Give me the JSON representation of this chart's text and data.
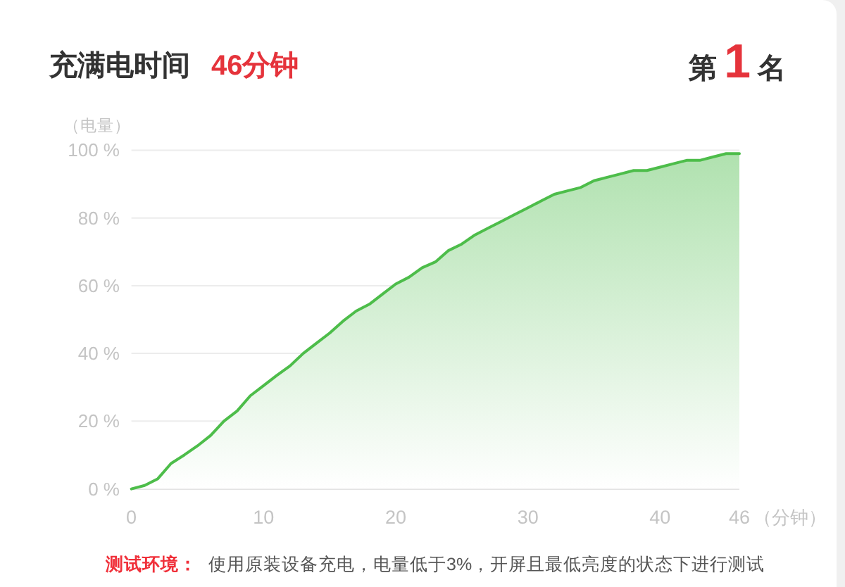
{
  "chart_data": {
    "type": "area",
    "title": "充满电时间",
    "subtitle": "46分钟",
    "annotations": [
      "第1名",
      "测试环境：",
      "使用原装设备充电，电量低于3%，开屏且最低亮度的状态下进行测试"
    ],
    "xlabel": "（分钟）",
    "ylabel": "（电量）",
    "x": [
      0,
      1,
      2,
      3,
      4,
      5,
      6,
      7,
      8,
      9,
      10,
      11,
      12,
      13,
      14,
      15,
      16,
      17,
      18,
      19,
      20,
      21,
      22,
      23,
      24,
      25,
      26,
      27,
      28,
      29,
      30,
      31,
      32,
      33,
      34,
      35,
      36,
      37,
      38,
      39,
      40,
      41,
      42,
      43,
      44,
      45,
      46
    ],
    "values": [
      0,
      1,
      3,
      7.5,
      10,
      12.7,
      15.8,
      20,
      23,
      27.5,
      30.5,
      33.5,
      36.3,
      40,
      43,
      46,
      49.5,
      52.5,
      54.5,
      57.5,
      60.5,
      62.5,
      65.3,
      67,
      70.4,
      72.3,
      75,
      77,
      79,
      81,
      83,
      85,
      87,
      88,
      89,
      91,
      92,
      93,
      94,
      94,
      95,
      96,
      97,
      97,
      98,
      99,
      99
    ],
    "color": "#4dbd4a",
    "xlim": [
      0,
      46
    ],
    "xticks": [
      0,
      10,
      20,
      30,
      40,
      46
    ],
    "ylim": [
      0,
      100
    ],
    "yticks": [
      {
        "value": 0,
        "label": "0 %"
      },
      {
        "value": 20,
        "label": "20 %"
      },
      {
        "value": 40,
        "label": "40 %"
      },
      {
        "value": 60,
        "label": "60 %"
      },
      {
        "value": 80,
        "label": "80 %"
      },
      {
        "value": 100,
        "label": "100 %"
      }
    ],
    "grid": "y"
  }
}
